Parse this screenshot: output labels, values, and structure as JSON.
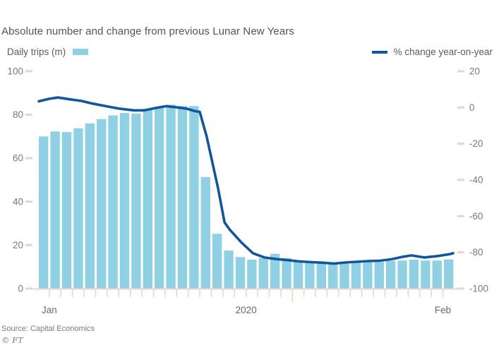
{
  "title": "Absolute number and change from previous Lunar New Years",
  "legend": {
    "bars": "Daily trips (m)",
    "line": "% change year-on-year"
  },
  "footer": {
    "source": "Source: Capital Economics",
    "credit": "© FT"
  },
  "colors": {
    "bar": "#90d0e5",
    "line": "#11569c",
    "axis": "#ead5c4",
    "axis_text": "#7d7873",
    "title_text": "#57534e",
    "legend_text": "#5f5a55",
    "date_text": "#6f6964"
  },
  "chart_data": {
    "type": "bar+line",
    "title": "Absolute number and change from previous Lunar New Years",
    "bar_series": {
      "name": "Daily trips (m)",
      "axis": "left",
      "values": [
        70,
        72.3,
        72,
        73.7,
        76,
        78,
        79.7,
        80.8,
        80.5,
        82.7,
        83.7,
        84.6,
        84,
        84,
        51.3,
        25.2,
        17.5,
        14.5,
        13.3,
        14,
        16,
        14,
        12.9,
        12.4,
        12.4,
        11.8,
        11.5,
        12,
        12.4,
        12.2,
        12.7,
        12.9,
        13.3,
        12.9,
        12.9,
        13.4
      ]
    },
    "line_series": {
      "name": "% change year-on-year",
      "axis": "right",
      "points": [
        [
          0,
          3.4
        ],
        [
          0.9,
          4.8
        ],
        [
          1.65,
          5.5
        ],
        [
          2.7,
          4.5
        ],
        [
          3.7,
          3.6
        ],
        [
          4.6,
          2.2
        ],
        [
          5.8,
          0.7
        ],
        [
          7.0,
          -0.7
        ],
        [
          8.2,
          -1.6
        ],
        [
          9.1,
          -1.6
        ],
        [
          10.4,
          0.1
        ],
        [
          11.0,
          0.7
        ],
        [
          11.9,
          0.1
        ],
        [
          12.8,
          -0.7
        ],
        [
          13.5,
          -2.0
        ],
        [
          13.9,
          -2.4
        ],
        [
          14.5,
          -16
        ],
        [
          15.5,
          -45
        ],
        [
          16.05,
          -63.5
        ],
        [
          16.5,
          -67.5
        ],
        [
          17.5,
          -74.5
        ],
        [
          18.5,
          -80.5
        ],
        [
          19.5,
          -82.8
        ],
        [
          20.5,
          -83.7
        ],
        [
          21.5,
          -84.3
        ],
        [
          22.5,
          -85
        ],
        [
          23.5,
          -85.4
        ],
        [
          24.5,
          -85.7
        ],
        [
          25.5,
          -86.2
        ],
        [
          26.5,
          -85.6
        ],
        [
          27.5,
          -85.2
        ],
        [
          28.5,
          -84.8
        ],
        [
          29.5,
          -84.6
        ],
        [
          30.5,
          -83.8
        ],
        [
          31.5,
          -82.4
        ],
        [
          32.2,
          -81.7
        ],
        [
          33.3,
          -82.8
        ],
        [
          34.5,
          -82
        ],
        [
          35.5,
          -81
        ],
        [
          35.8,
          -80.5
        ]
      ]
    },
    "left_axis": {
      "title": "Daily trips (m)",
      "ticks": [
        100,
        80,
        60,
        40,
        20,
        0
      ],
      "range": [
        0,
        100
      ]
    },
    "right_axis": {
      "title": "% change year-on-year",
      "ticks": [
        20,
        0,
        -20,
        -40,
        -60,
        -80,
        -100
      ],
      "range": [
        -100,
        20
      ]
    },
    "x_axis": {
      "num_bars": 36,
      "labels": [
        {
          "text": "Jan",
          "after_bar": 1
        },
        {
          "text": "2020",
          "after_bar": 18
        },
        {
          "text": "Feb",
          "after_bar": 35
        }
      ],
      "long_tick_after_bar": 22
    }
  }
}
